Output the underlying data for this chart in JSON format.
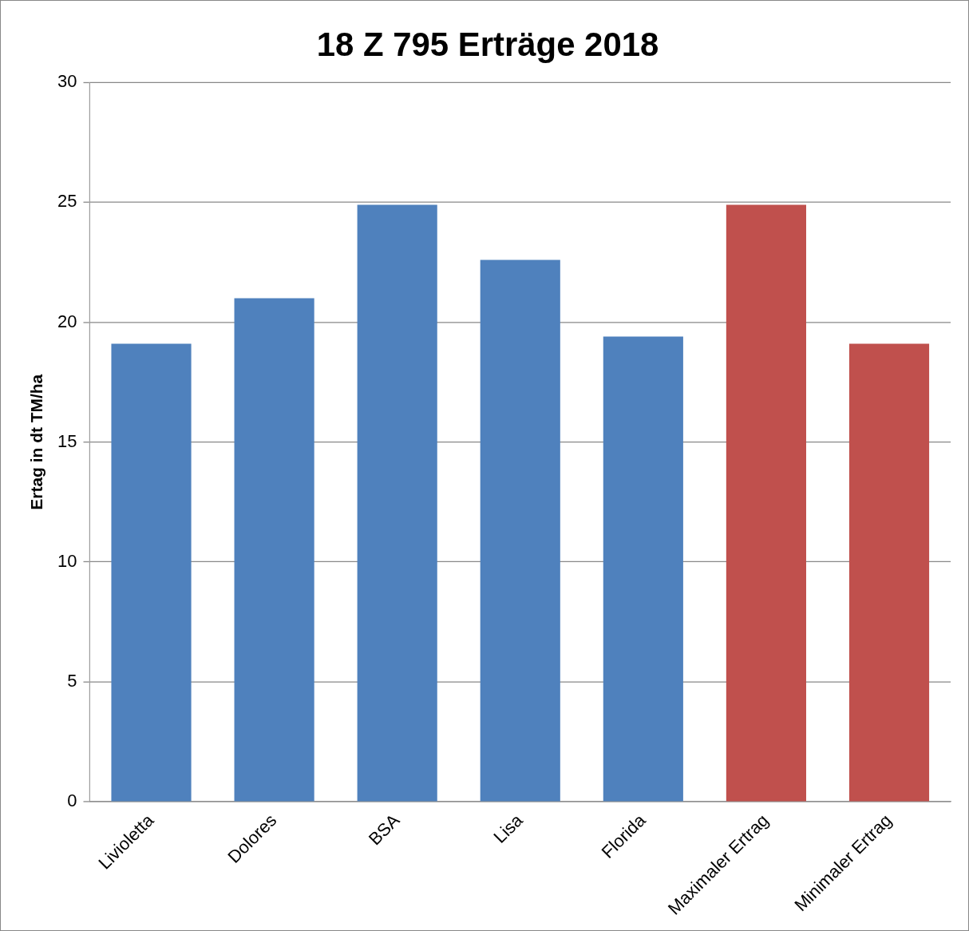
{
  "chart_data": {
    "type": "bar",
    "title": "18 Z 795 Erträge 2018",
    "ylabel": "Ertag in dt TM/ha",
    "categories": [
      "Livioletta",
      "Dolores",
      "BSA",
      "Lisa",
      "Florida",
      "Maximaler Ertrag",
      "Minimaler Ertrag"
    ],
    "values": [
      19.1,
      21.0,
      24.9,
      22.6,
      19.4,
      24.9,
      19.1
    ],
    "colors": [
      "#4f81bd",
      "#4f81bd",
      "#4f81bd",
      "#4f81bd",
      "#4f81bd",
      "#c0504d",
      "#c0504d"
    ],
    "ylim": [
      0,
      30
    ],
    "yticks": [
      0,
      5,
      10,
      15,
      20,
      25,
      30
    ],
    "grid": "y",
    "legend": false
  }
}
